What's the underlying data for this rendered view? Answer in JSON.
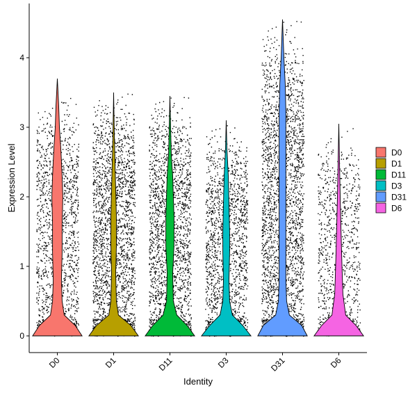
{
  "chart_data": {
    "type": "violin",
    "title": "",
    "xlabel": "Identity",
    "ylabel": "Expression Level",
    "ylim": [
      -0.25,
      4.6
    ],
    "y_ticks": [
      0,
      1,
      2,
      3,
      4
    ],
    "categories": [
      "D0",
      "D1",
      "D11",
      "D3",
      "D31",
      "D6"
    ],
    "colors": [
      "#F8766D",
      "#B79F00",
      "#00BA38",
      "#00BFC4",
      "#619CFF",
      "#F564E3"
    ],
    "series": [
      {
        "name": "D0",
        "max": 3.7,
        "violin_profile": [
          [
            0,
            0.36
          ],
          [
            0.15,
            0.26
          ],
          [
            0.3,
            0.1
          ],
          [
            0.5,
            0.07
          ],
          [
            0.8,
            0.06
          ],
          [
            1.2,
            0.07
          ],
          [
            1.6,
            0.07
          ],
          [
            2.0,
            0.08
          ],
          [
            2.3,
            0.07
          ],
          [
            2.7,
            0.05
          ],
          [
            3.0,
            0.03
          ],
          [
            3.3,
            0.02
          ],
          [
            3.7,
            0
          ]
        ],
        "point_range": [
          0,
          3.5
        ]
      },
      {
        "name": "D1",
        "max": 3.5,
        "violin_profile": [
          [
            0,
            0.36
          ],
          [
            0.15,
            0.25
          ],
          [
            0.3,
            0.07
          ],
          [
            0.5,
            0.04
          ],
          [
            0.9,
            0.03
          ],
          [
            1.3,
            0.04
          ],
          [
            1.7,
            0.04
          ],
          [
            2.1,
            0.03
          ],
          [
            2.5,
            0.02
          ],
          [
            2.9,
            0.01
          ],
          [
            3.5,
            0
          ]
        ],
        "point_range": [
          0,
          3.5
        ]
      },
      {
        "name": "D11",
        "max": 3.45,
        "violin_profile": [
          [
            0,
            0.36
          ],
          [
            0.15,
            0.25
          ],
          [
            0.3,
            0.1
          ],
          [
            0.5,
            0.05
          ],
          [
            0.9,
            0.04
          ],
          [
            1.3,
            0.06
          ],
          [
            1.7,
            0.06
          ],
          [
            2.0,
            0.05
          ],
          [
            2.3,
            0.04
          ],
          [
            2.6,
            0.02
          ],
          [
            3.0,
            0.01
          ],
          [
            3.45,
            0
          ]
        ],
        "point_range": [
          0,
          3.45
        ]
      },
      {
        "name": "D3",
        "max": 3.1,
        "violin_profile": [
          [
            0,
            0.36
          ],
          [
            0.15,
            0.24
          ],
          [
            0.3,
            0.09
          ],
          [
            0.5,
            0.05
          ],
          [
            0.8,
            0.04
          ],
          [
            1.2,
            0.05
          ],
          [
            1.5,
            0.05
          ],
          [
            1.9,
            0.04
          ],
          [
            2.3,
            0.03
          ],
          [
            2.7,
            0.01
          ],
          [
            3.1,
            0
          ]
        ],
        "point_range": [
          0,
          3.05
        ]
      },
      {
        "name": "D31",
        "max": 4.55,
        "violin_profile": [
          [
            0,
            0.36
          ],
          [
            0.15,
            0.28
          ],
          [
            0.3,
            0.1
          ],
          [
            0.5,
            0.06
          ],
          [
            0.8,
            0.05
          ],
          [
            1.2,
            0.05
          ],
          [
            1.6,
            0.05
          ],
          [
            2.0,
            0.05
          ],
          [
            2.4,
            0.05
          ],
          [
            2.8,
            0.05
          ],
          [
            3.2,
            0.05
          ],
          [
            3.6,
            0.04
          ],
          [
            4.0,
            0.02
          ],
          [
            4.55,
            0
          ]
        ],
        "point_range": [
          0,
          4.55
        ]
      },
      {
        "name": "D6",
        "max": 3.05,
        "violin_profile": [
          [
            0,
            0.36
          ],
          [
            0.15,
            0.25
          ],
          [
            0.3,
            0.1
          ],
          [
            0.6,
            0.06
          ],
          [
            0.9,
            0.05
          ],
          [
            1.2,
            0.04
          ],
          [
            1.6,
            0.03
          ],
          [
            2.0,
            0.02
          ],
          [
            2.5,
            0.01
          ],
          [
            3.05,
            0
          ]
        ],
        "point_range": [
          0,
          3.0
        ]
      }
    ],
    "jitter_points": true,
    "legend_position": "right",
    "grid": false
  }
}
